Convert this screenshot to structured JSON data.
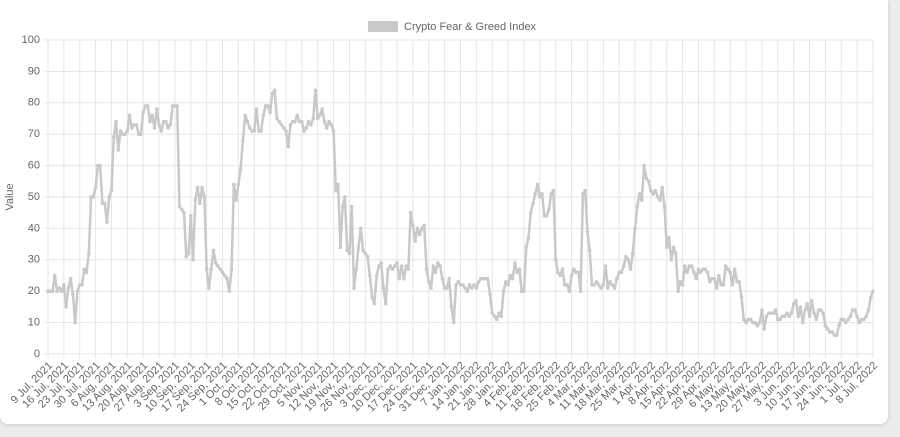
{
  "chart_data": {
    "type": "line",
    "legend": "top",
    "grid": true,
    "color": "#c9c9c9",
    "ylabel": "Value",
    "ylim": [
      0,
      100
    ],
    "yticks": [
      0,
      10,
      20,
      30,
      40,
      50,
      60,
      70,
      80,
      90,
      100
    ],
    "categories": [
      "9 Jul, 2021",
      null,
      null,
      null,
      null,
      null,
      null,
      "16 Jul, 2021",
      null,
      null,
      null,
      null,
      null,
      null,
      "23 Jul, 2021",
      null,
      null,
      null,
      null,
      null,
      null,
      "30 Jul, 2021",
      null,
      null,
      null,
      null,
      null,
      null,
      "6 Aug, 2021",
      null,
      null,
      null,
      null,
      null,
      null,
      "13 Aug, 2021",
      null,
      null,
      null,
      null,
      null,
      null,
      "20 Aug, 2021",
      null,
      null,
      null,
      null,
      null,
      null,
      "27 Aug, 2021",
      null,
      null,
      null,
      null,
      null,
      null,
      "3 Sep, 2021",
      null,
      null,
      null,
      null,
      null,
      null,
      "10 Sep, 2021",
      null,
      null,
      null,
      null,
      null,
      null,
      "17 Sep, 2021",
      null,
      null,
      null,
      null,
      null,
      null,
      "24 Sep, 2021",
      null,
      null,
      null,
      null,
      null,
      null,
      "1 Oct, 2021",
      null,
      null,
      null,
      null,
      null,
      null,
      "8 Oct, 2021",
      null,
      null,
      null,
      null,
      null,
      null,
      "15 Oct, 2021",
      null,
      null,
      null,
      null,
      null,
      null,
      "22 Oct, 2021",
      null,
      null,
      null,
      null,
      null,
      null,
      "29 Oct, 2021",
      null,
      null,
      null,
      null,
      null,
      null,
      "5 Nov, 2021",
      null,
      null,
      null,
      null,
      null,
      null,
      "12 Nov, 2021",
      null,
      null,
      null,
      null,
      null,
      null,
      "19 Nov, 2021",
      null,
      null,
      null,
      null,
      null,
      null,
      "26 Nov, 2021",
      null,
      null,
      null,
      null,
      null,
      null,
      "3 Dec, 2021",
      null,
      null,
      null,
      null,
      null,
      null,
      "10 Dec, 2021",
      null,
      null,
      null,
      null,
      null,
      null,
      "17 Dec, 2021",
      null,
      null,
      null,
      null,
      null,
      null,
      "24 Dec, 2021",
      null,
      null,
      null,
      null,
      null,
      null,
      "31 Dec, 2021",
      null,
      null,
      null,
      null,
      null,
      null,
      "7 Jan, 2022",
      null,
      null,
      null,
      null,
      null,
      null,
      "14 Jan, 2022",
      null,
      null,
      null,
      null,
      null,
      null,
      "21 Jan, 2022",
      null,
      null,
      null,
      null,
      null,
      null,
      "28 Jan, 2022",
      null,
      null,
      null,
      null,
      null,
      null,
      "4 Feb, 2022",
      null,
      null,
      null,
      null,
      null,
      null,
      "11 Feb, 2022",
      null,
      null,
      null,
      null,
      null,
      null,
      "18 Feb, 2022",
      null,
      null,
      null,
      null,
      null,
      null,
      "25 Feb, 2022",
      null,
      null,
      null,
      null,
      null,
      null,
      "4 Mar, 2022",
      null,
      null,
      null,
      null,
      null,
      null,
      "11 Mar, 2022",
      null,
      null,
      null,
      null,
      null,
      null,
      "18 Mar, 2022",
      null,
      null,
      null,
      null,
      null,
      null,
      "25 Mar, 2022",
      null,
      null,
      null,
      null,
      null,
      null,
      "1 Apr, 2022",
      null,
      null,
      null,
      null,
      null,
      null,
      "8 Apr, 2022",
      null,
      null,
      null,
      null,
      null,
      null,
      "15 Apr, 2022",
      null,
      null,
      null,
      null,
      null,
      null,
      "22 Apr, 2022",
      null,
      null,
      null,
      null,
      null,
      null,
      "29 Apr, 2022",
      null,
      null,
      null,
      null,
      null,
      null,
      "6 May, 2022",
      null,
      null,
      null,
      null,
      null,
      null,
      "13 May, 2022",
      null,
      null,
      null,
      null,
      null,
      null,
      "20 May, 2022",
      null,
      null,
      null,
      null,
      null,
      null,
      "27 May, 2022",
      null,
      null,
      null,
      null,
      null,
      null,
      "3 Jun, 2022",
      null,
      null,
      null,
      null,
      null,
      null,
      "10 Jun, 2022",
      null,
      null,
      null,
      null,
      null,
      null,
      "17 Jun, 2022",
      null,
      null,
      null,
      null,
      null,
      null,
      "24 Jun, 2022",
      null,
      null,
      null,
      null,
      null,
      null,
      "1 Jul, 2022",
      null,
      null,
      null,
      null,
      null,
      null,
      "8 Jul, 2022"
    ],
    "series": [
      {
        "name": "Crypto Fear & Greed Index",
        "color": "#c9c9c9",
        "values": [
          20,
          20,
          20,
          25,
          20,
          21,
          20,
          22,
          15,
          21,
          24,
          19,
          10,
          20,
          22,
          22,
          27,
          26,
          32,
          50,
          50,
          53,
          60,
          60,
          48,
          48,
          42,
          50,
          52,
          69,
          74,
          65,
          71,
          70,
          70,
          71,
          76,
          72,
          73,
          73,
          70,
          70,
          77,
          79,
          79,
          74,
          76,
          72,
          78,
          73,
          71,
          74,
          74,
          72,
          73,
          79,
          79,
          79,
          47,
          46,
          45,
          31,
          32,
          44,
          30,
          49,
          53,
          48,
          53,
          50,
          27,
          21,
          27,
          33,
          29,
          28,
          27,
          26,
          25,
          24,
          20,
          27,
          54,
          49,
          54,
          59,
          68,
          76,
          74,
          72,
          71,
          71,
          78,
          71,
          71,
          76,
          79,
          79,
          77,
          83,
          84,
          75,
          74,
          73,
          72,
          71,
          66,
          73,
          74,
          74,
          76,
          74,
          74,
          71,
          72,
          74,
          73,
          75,
          84,
          75,
          76,
          78,
          74,
          72,
          74,
          73,
          71,
          52,
          54,
          34,
          47,
          50,
          33,
          32,
          47,
          21,
          27,
          34,
          40,
          33,
          32,
          31,
          25,
          18,
          16,
          25,
          28,
          29,
          21,
          16,
          27,
          28,
          27,
          28,
          29,
          24,
          28,
          24,
          28,
          27,
          45,
          41,
          36,
          40,
          38,
          40,
          41,
          27,
          23,
          21,
          28,
          26,
          29,
          28,
          24,
          21,
          21,
          24,
          15,
          10,
          22,
          23,
          22,
          22,
          21,
          20,
          22,
          21,
          22,
          21,
          23,
          24,
          24,
          24,
          24,
          19,
          13,
          12,
          11,
          13,
          12,
          20,
          23,
          22,
          25,
          24,
          29,
          26,
          27,
          20,
          20,
          34,
          37,
          45,
          48,
          51,
          54,
          50,
          51,
          44,
          44,
          46,
          51,
          52,
          30,
          26,
          25,
          27,
          22,
          22,
          20,
          25,
          27,
          26,
          26,
          20,
          51,
          52,
          39,
          33,
          22,
          22,
          23,
          22,
          21,
          22,
          28,
          21,
          23,
          22,
          21,
          24,
          26,
          26,
          28,
          31,
          30,
          27,
          32,
          40,
          47,
          51,
          49,
          60,
          56,
          55,
          52,
          51,
          52,
          50,
          49,
          53,
          47,
          34,
          37,
          30,
          34,
          32,
          20,
          23,
          22,
          28,
          26,
          28,
          28,
          26,
          24,
          27,
          26,
          27,
          27,
          26,
          23,
          24,
          24,
          21,
          25,
          22,
          22,
          28,
          27,
          26,
          22,
          27,
          23,
          23,
          18,
          11,
          10,
          11,
          11,
          10,
          10,
          9,
          10,
          14,
          8,
          12,
          13,
          13,
          13,
          14,
          11,
          11,
          12,
          12,
          13,
          12,
          13,
          16,
          17,
          12,
          15,
          10,
          14,
          16,
          12,
          17,
          13,
          11,
          14,
          14,
          13,
          9,
          8,
          7,
          7,
          6,
          6,
          9,
          11,
          11,
          10,
          11,
          12,
          14,
          14,
          12,
          10,
          11,
          11,
          12,
          14,
          18,
          20
        ]
      }
    ]
  }
}
